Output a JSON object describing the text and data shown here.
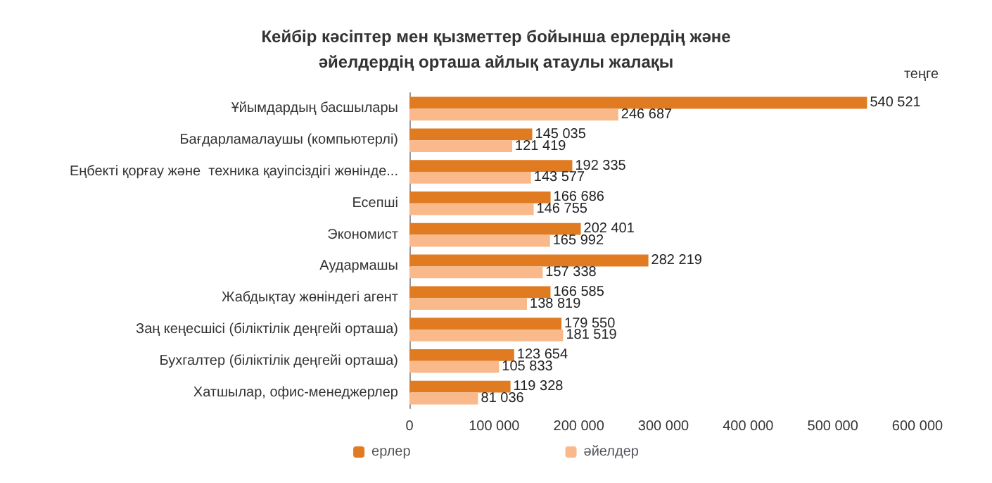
{
  "chart_data": {
    "type": "bar",
    "orientation": "horizontal",
    "title": "Кейбір кәсіптер мен қызметтер бойынша ерлердің және\nәйелдердің орташа айлық атаулы жалақы",
    "annotations": [
      "теңге"
    ],
    "categories": [
      "Ұйымдардың басшылары",
      "Бағдарламалаушы (компьютерлі)",
      "Еңбекті қорғау және  техника қауіпсіздігі жөнінде...",
      "Есепші",
      "Экономист",
      "Аудармашы",
      "Жабдықтау жөніндегі агент",
      "Заң кеңесшісі (біліктілік деңгейі орташа)",
      "Бухгалтер (біліктілік деңгейі орташа)",
      "Хатшылар, офис-менеджерлер"
    ],
    "series": [
      {
        "name": "ерлер",
        "color": "#e07b22",
        "values": [
          540521,
          145035,
          192335,
          166686,
          202401,
          282219,
          166585,
          179550,
          123654,
          119328
        ],
        "value_labels": [
          "540 521",
          "145 035",
          "192 335",
          "166 686",
          "202 401",
          "282 219",
          "166 585",
          "179 550",
          "123 654",
          "119 328"
        ]
      },
      {
        "name": "әйелдер",
        "color": "#f9b98a",
        "values": [
          246687,
          121419,
          143577,
          146755,
          165992,
          157338,
          138819,
          181519,
          105833,
          81036
        ],
        "value_labels": [
          "246 687",
          "121 419",
          "143 577",
          "146 755",
          "165 992",
          "157 338",
          "138 819",
          "181 519",
          "105 833",
          "81 036"
        ]
      }
    ],
    "xlim": [
      0,
      600000
    ],
    "xticks": [
      0,
      {
        "value": 100000,
        "label": "100 000"
      },
      {
        "value": 200000,
        "label": "200 000"
      },
      {
        "value": 300000,
        "label": "300 000"
      },
      {
        "value": 400000,
        "label": "400 000"
      },
      {
        "value": 500000,
        "label": "500 000"
      },
      {
        "value": 600000,
        "label": "600 000"
      }
    ],
    "grid": false,
    "legend": "bottom"
  }
}
